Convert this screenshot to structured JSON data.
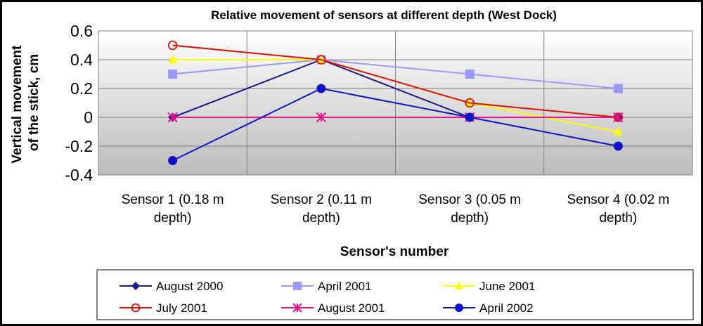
{
  "chart_data": {
    "type": "line",
    "title": "Relative movement of sensors at different depth (West Dock)",
    "xlabel": "Sensor's number",
    "ylabel": [
      "Vertical movement",
      "of the stick, cm"
    ],
    "categories": [
      [
        "Sensor 1 (0.18 m",
        "depth)"
      ],
      [
        "Sensor 2 (0.11 m",
        "depth)"
      ],
      [
        "Sensor 3 (0.05 m",
        "depth)"
      ],
      [
        "Sensor 4 (0.02 m",
        "depth)"
      ]
    ],
    "ylim": [
      -0.4,
      0.6
    ],
    "yticks": [
      -0.4,
      -0.2,
      0,
      0.2,
      0.4,
      0.6
    ],
    "ytick_labels": [
      "-0.4",
      "-0.2",
      "0",
      "0.2",
      "0.4",
      "0.6"
    ],
    "grid": true,
    "legend_position": "bottom",
    "series": [
      {
        "name": "August 2000",
        "color": "#1a1a8c",
        "marker": "diamond",
        "values": [
          0,
          0.4,
          0,
          0
        ]
      },
      {
        "name": "April 2001",
        "color": "#9999ff",
        "marker": "square",
        "values": [
          0.3,
          0.4,
          0.3,
          0.2
        ]
      },
      {
        "name": "June 2001",
        "color": "#ffff00",
        "marker": "triangle",
        "values": [
          0.4,
          0.4,
          0.1,
          -0.1
        ]
      },
      {
        "name": "July 2001",
        "color": "#dd1100",
        "marker": "open-circle",
        "values": [
          0.5,
          0.4,
          0.1,
          0
        ]
      },
      {
        "name": "August 2001",
        "color": "#ee1188",
        "marker": "star",
        "values": [
          0,
          0,
          0,
          0
        ]
      },
      {
        "name": "April 2002",
        "color": "#1111cc",
        "marker": "circle",
        "values": [
          -0.3,
          0.2,
          0,
          -0.2
        ]
      }
    ]
  }
}
